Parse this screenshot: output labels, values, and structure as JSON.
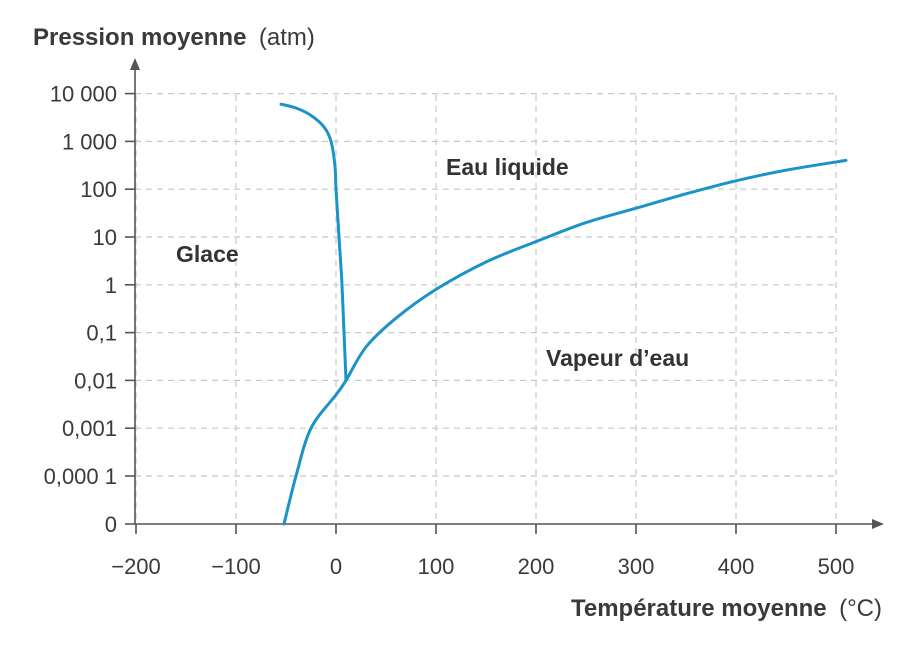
{
  "chart_data": {
    "type": "line",
    "title": "",
    "ylabel": "Pression moyenne",
    "ylabel_unit": "(atm)",
    "xlabel": "Température moyenne",
    "xlabel_unit": "(°C)",
    "x_ticks": [
      "−200",
      "−100",
      "0",
      "100",
      "200",
      "300",
      "400",
      "500"
    ],
    "x_tick_values": [
      -200,
      -100,
      0,
      100,
      200,
      300,
      400,
      500
    ],
    "y_ticks": [
      "0",
      "0,000 1",
      "0,001",
      "0,01",
      "0,1",
      "1",
      "10",
      "100",
      "1 000",
      "10 000"
    ],
    "y_scale": "log (labelled decades)",
    "xlim": [
      -200,
      540
    ],
    "grid": true,
    "colors": {
      "curve": "#1a93c8",
      "grid": "#c8c8c8",
      "axis": "#555555"
    },
    "regions": [
      {
        "label": "Glace",
        "x": -160,
        "y": 3
      },
      {
        "label": "Eau liquide",
        "x": 110,
        "y": 200
      },
      {
        "label": "Vapeur d’eau",
        "x": 210,
        "y": 0.02
      }
    ],
    "series": [
      {
        "points": [
          [
            -55,
            6000
          ],
          [
            -40,
            5000
          ],
          [
            -25,
            3500
          ],
          [
            -12,
            2000
          ],
          [
            -5,
            1000
          ],
          [
            -1,
            300
          ],
          [
            0,
            100
          ],
          [
            3,
            10
          ],
          [
            6,
            1
          ],
          [
            8,
            0.1
          ],
          [
            10,
            0.01
          ]
        ]
      },
      {
        "points": [
          [
            -52,
            0
          ],
          [
            -40,
            0.0001
          ],
          [
            -25,
            0.001
          ],
          [
            0,
            0.005
          ],
          [
            10,
            0.01
          ],
          [
            30,
            0.05
          ],
          [
            60,
            0.2
          ],
          [
            100,
            0.8
          ],
          [
            150,
            3
          ],
          [
            200,
            8
          ],
          [
            250,
            20
          ],
          [
            300,
            40
          ],
          [
            350,
            80
          ],
          [
            400,
            150
          ],
          [
            450,
            250
          ],
          [
            510,
            400
          ]
        ]
      }
    ]
  }
}
